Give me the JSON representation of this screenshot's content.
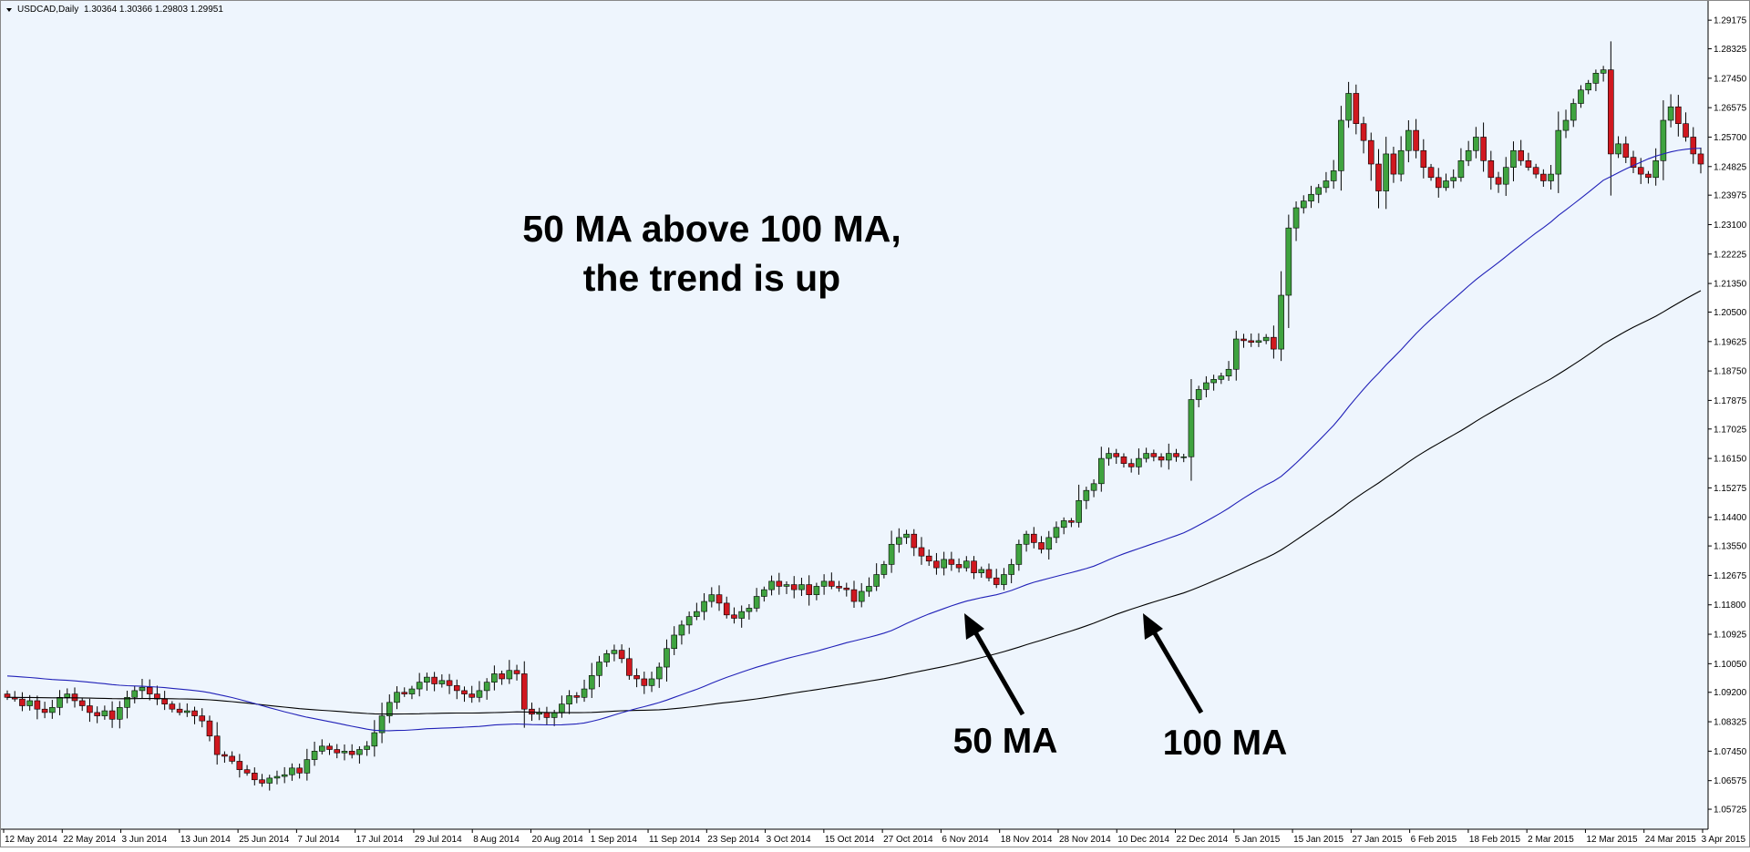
{
  "window": {
    "symbol": "USDCAD,Daily",
    "ohlc": "1.30364 1.30366 1.29803 1.29951"
  },
  "colors": {
    "background": "#eef5fd",
    "axis_background": "#ffffff",
    "bull_candle": "#3fa33f",
    "bear_candle": "#d0181f",
    "wick": "#000000",
    "ma50": "#2121b8",
    "ma100": "#000000",
    "annotation": "#000000"
  },
  "chart_data": {
    "type": "candlestick",
    "title": "USDCAD,Daily",
    "y_ticks": [
      "1.29175",
      "1.28325",
      "1.27450",
      "1.26575",
      "1.25700",
      "1.24825",
      "1.23975",
      "1.23100",
      "1.22225",
      "1.21350",
      "1.20500",
      "1.19625",
      "1.18750",
      "1.17875",
      "1.17025",
      "1.16150",
      "1.15275",
      "1.14400",
      "1.13550",
      "1.12675",
      "1.11800",
      "1.10925",
      "1.10050",
      "1.09200",
      "1.08325",
      "1.07450",
      "1.06575",
      "1.05725"
    ],
    "ylim": [
      1.0551,
      1.2945
    ],
    "x_ticks": [
      "12 May 2014",
      "22 May 2014",
      "3 Jun 2014",
      "13 Jun 2014",
      "25 Jun 2014",
      "7 Jul 2014",
      "17 Jul 2014",
      "29 Jul 2014",
      "8 Aug 2014",
      "20 Aug 2014",
      "1 Sep 2014",
      "11 Sep 2014",
      "23 Sep 2014",
      "3 Oct 2014",
      "15 Oct 2014",
      "27 Oct 2014",
      "6 Nov 2014",
      "18 Nov 2014",
      "28 Nov 2014",
      "10 Dec 2014",
      "22 Dec 2014",
      "5 Jan 2015",
      "15 Jan 2015",
      "27 Jan 2015",
      "6 Feb 2015",
      "18 Feb 2015",
      "2 Mar 2015",
      "12 Mar 2015",
      "24 Mar 2015",
      "3 Apr 2015"
    ],
    "grid": false,
    "closes": [
      1.0905,
      1.09,
      1.088,
      1.0895,
      1.087,
      1.086,
      1.0875,
      1.0905,
      1.0915,
      1.0895,
      1.088,
      1.086,
      1.085,
      1.0865,
      1.084,
      1.0875,
      1.0905,
      1.0925,
      1.0935,
      1.0915,
      1.09,
      1.0885,
      1.087,
      1.086,
      1.0865,
      1.085,
      1.0835,
      1.079,
      1.0735,
      1.073,
      1.0715,
      1.069,
      1.068,
      1.066,
      1.065,
      1.0665,
      1.067,
      1.0675,
      1.0695,
      1.068,
      1.072,
      1.0745,
      1.076,
      1.075,
      1.074,
      1.0745,
      1.0735,
      1.075,
      1.076,
      1.08,
      1.085,
      1.089,
      1.092,
      1.0915,
      1.093,
      1.095,
      1.0965,
      1.0945,
      1.0955,
      1.094,
      1.0925,
      1.0915,
      1.0905,
      1.0925,
      1.095,
      1.0975,
      1.096,
      1.0985,
      1.0975,
      1.087,
      1.0855,
      1.086,
      1.0845,
      1.086,
      1.0885,
      1.091,
      1.0905,
      1.093,
      1.097,
      1.101,
      1.1035,
      1.1045,
      1.102,
      1.097,
      1.096,
      1.094,
      1.096,
      1.0995,
      1.105,
      1.109,
      1.112,
      1.1145,
      1.116,
      1.119,
      1.121,
      1.1185,
      1.115,
      1.114,
      1.116,
      1.117,
      1.1205,
      1.1225,
      1.125,
      1.1235,
      1.124,
      1.1225,
      1.124,
      1.121,
      1.1235,
      1.125,
      1.1235,
      1.123,
      1.1225,
      1.119,
      1.122,
      1.1235,
      1.127,
      1.13,
      1.136,
      1.138,
      1.139,
      1.135,
      1.1325,
      1.131,
      1.129,
      1.1315,
      1.13,
      1.129,
      1.131,
      1.1275,
      1.1285,
      1.126,
      1.124,
      1.127,
      1.13,
      1.136,
      1.139,
      1.1365,
      1.1345,
      1.138,
      1.141,
      1.143,
      1.1425,
      1.149,
      1.152,
      1.154,
      1.1615,
      1.163,
      1.162,
      1.16,
      1.159,
      1.1615,
      1.163,
      1.162,
      1.161,
      1.163,
      1.162,
      1.162,
      1.179,
      1.182,
      1.184,
      1.185,
      1.186,
      1.188,
      1.197,
      1.1965,
      1.196,
      1.1965,
      1.1975,
      1.194,
      1.21,
      1.23,
      1.236,
      1.238,
      1.24,
      1.242,
      1.244,
      1.247,
      1.262,
      1.27,
      1.261,
      1.256,
      1.249,
      1.241,
      1.252,
      1.246,
      1.253,
      1.259,
      1.253,
      1.248,
      1.245,
      1.242,
      1.244,
      1.245,
      1.25,
      1.253,
      1.257,
      1.25,
      1.245,
      1.243,
      1.248,
      1.253,
      1.25,
      1.248,
      1.246,
      1.244,
      1.246,
      1.259,
      1.262,
      1.267,
      1.271,
      1.273,
      1.276,
      1.277,
      1.252,
      1.255,
      1.251,
      1.248,
      1.246,
      1.245,
      1.25,
      1.262,
      1.266,
      1.261,
      1.257,
      1.252,
      1.249
    ]
  },
  "annotations": {
    "headline_line1": "50 MA above 100 MA,",
    "headline_line2": "the trend is up",
    "label_ma50": "50 MA",
    "label_ma100": "100 MA"
  }
}
